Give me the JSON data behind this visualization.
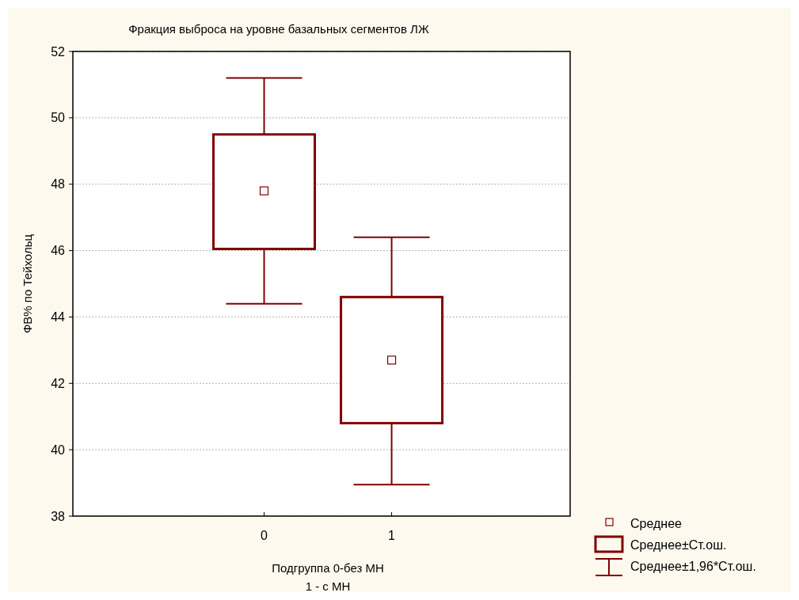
{
  "chart_data": {
    "type": "box",
    "title": "Фракция выброса на уровне базальных сегментов ЛЖ",
    "xlabel": "Подгруппа 0-без МН\n1 - с МН",
    "ylabel": "ФВ% по Тейхольц",
    "categories": [
      "0",
      "1"
    ],
    "boxes": [
      {
        "low": 44.4,
        "q1": 46.05,
        "median": 47.8,
        "q3": 49.5,
        "high": 51.2
      },
      {
        "low": 38.95,
        "q1": 40.8,
        "median": 42.7,
        "q3": 44.6,
        "high": 46.4
      }
    ],
    "color": "#800000",
    "ylim": [
      38,
      52
    ],
    "yticks": [
      38,
      40,
      42,
      44,
      46,
      48,
      50,
      52
    ],
    "grid": "y",
    "annotations": [
      "Среднее",
      "Среднее±Ст.ош.",
      "Среднее±1,96*Ст.ош."
    ]
  }
}
